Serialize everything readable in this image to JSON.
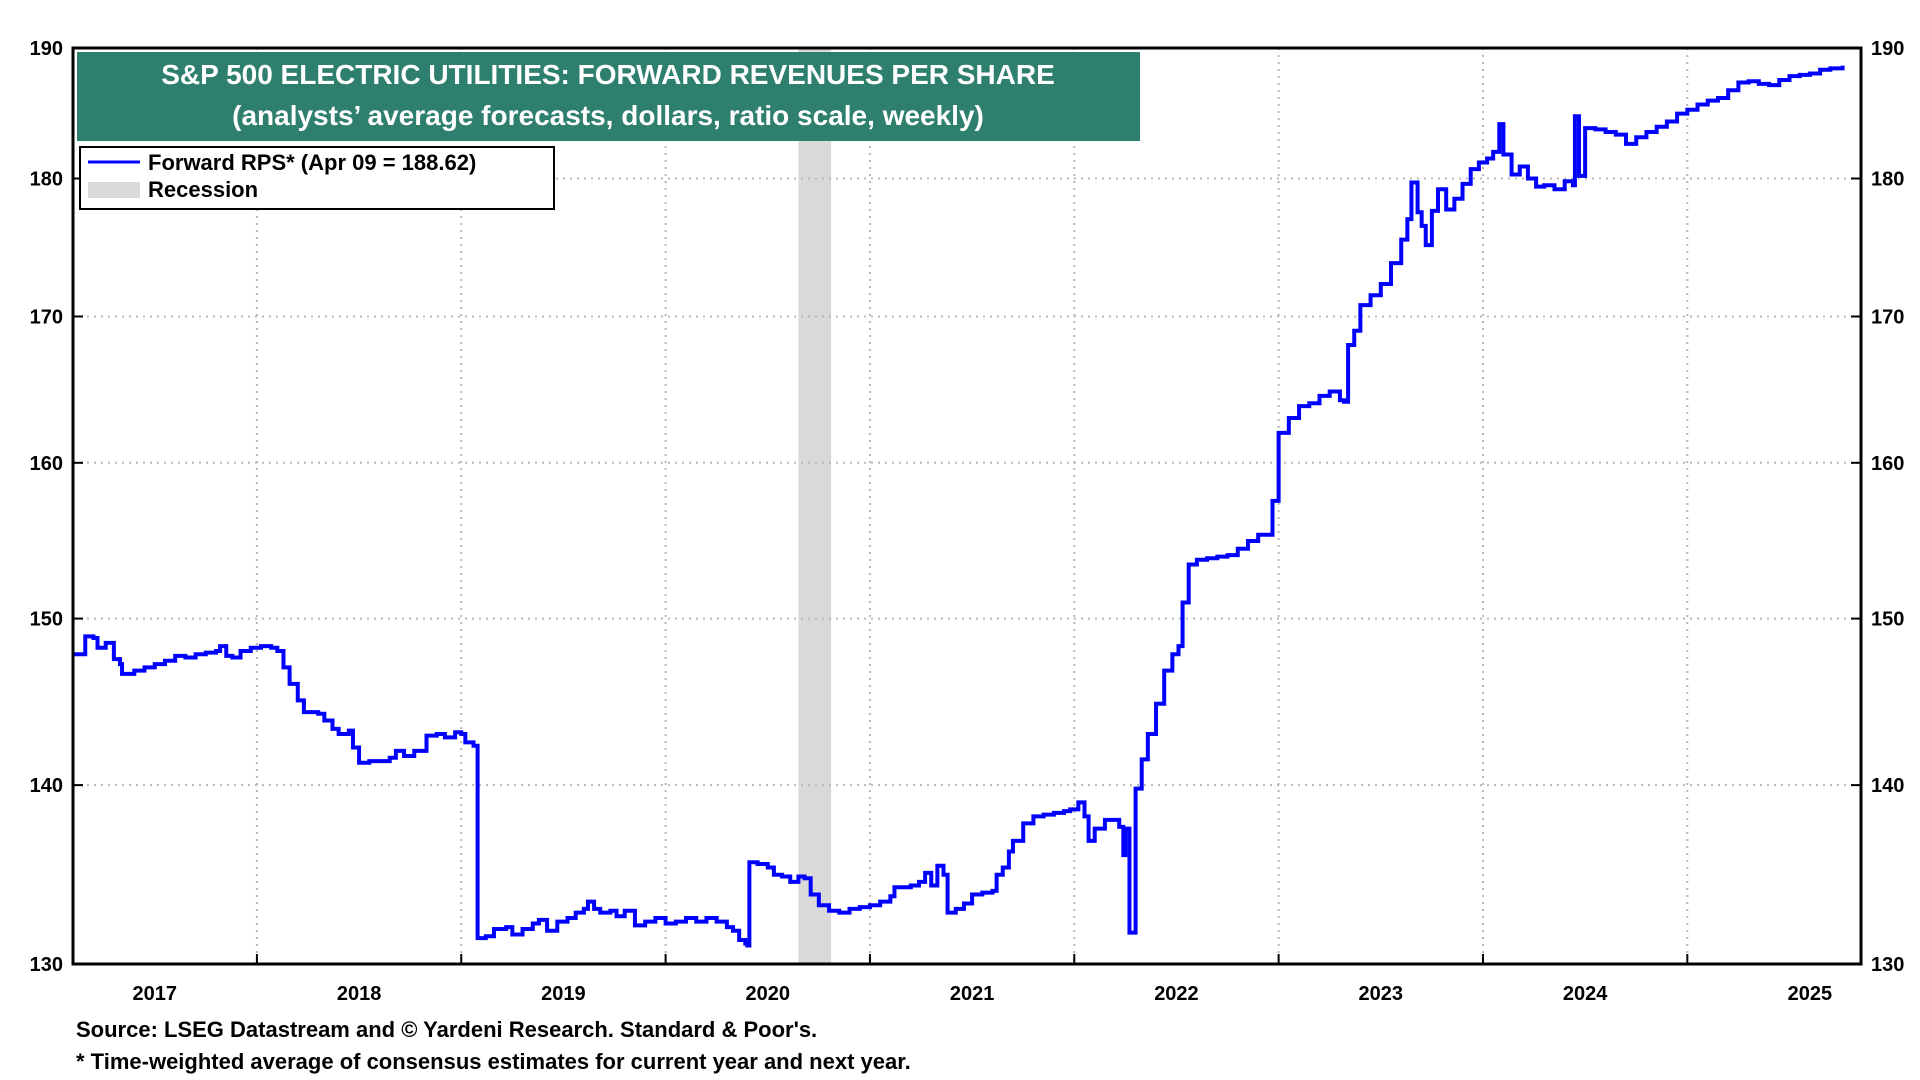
{
  "chart_data": {
    "type": "line",
    "title": "S&P 500 ELECTRIC UTILITIES: FORWARD REVENUES PER SHARE",
    "subtitle": "(analysts’ average forecasts, dollars, ratio scale, weekly)",
    "scale": "log",
    "ylim": [
      130,
      190
    ],
    "yticks": [
      130,
      140,
      150,
      160,
      170,
      180,
      190
    ],
    "x_range": [
      2016.6,
      2025.35
    ],
    "x_gridlines": [
      2017.5,
      2018.5,
      2019.5,
      2020.5,
      2021.5,
      2022.5,
      2023.5,
      2024.5
    ],
    "x_tick_labels": [
      {
        "label": "2017",
        "x": 2017
      },
      {
        "label": "2018",
        "x": 2018
      },
      {
        "label": "2019",
        "x": 2019
      },
      {
        "label": "2020",
        "x": 2020
      },
      {
        "label": "2021",
        "x": 2021
      },
      {
        "label": "2022",
        "x": 2022
      },
      {
        "label": "2023",
        "x": 2023
      },
      {
        "label": "2024",
        "x": 2024
      },
      {
        "label": "2025",
        "x": 2025.1
      }
    ],
    "legend": {
      "placement": "top-left",
      "entries": [
        {
          "label": "Forward RPS* (Apr 09 = 188.62)",
          "kind": "line",
          "color": "#0000ff"
        },
        {
          "label": "Recession",
          "kind": "area",
          "color": "#d9d9d9"
        }
      ]
    },
    "recessions": [
      {
        "start": 2020.15,
        "end": 2020.31
      }
    ],
    "series": [
      {
        "name": "Forward RPS",
        "color": "#0000ff",
        "points": [
          [
            2016.6,
            147.8
          ],
          [
            2016.65,
            147.8
          ],
          [
            2016.66,
            148.9
          ],
          [
            2016.7,
            148.8
          ],
          [
            2016.72,
            148.2
          ],
          [
            2016.76,
            148.5
          ],
          [
            2016.8,
            147.5
          ],
          [
            2016.83,
            147.2
          ],
          [
            2016.84,
            146.6
          ],
          [
            2016.9,
            146.8
          ],
          [
            2016.95,
            147.0
          ],
          [
            2017.0,
            147.2
          ],
          [
            2017.05,
            147.4
          ],
          [
            2017.1,
            147.7
          ],
          [
            2017.15,
            147.6
          ],
          [
            2017.2,
            147.8
          ],
          [
            2017.25,
            147.9
          ],
          [
            2017.3,
            148.0
          ],
          [
            2017.32,
            148.3
          ],
          [
            2017.35,
            147.7
          ],
          [
            2017.38,
            147.6
          ],
          [
            2017.42,
            148.0
          ],
          [
            2017.47,
            148.2
          ],
          [
            2017.52,
            148.3
          ],
          [
            2017.57,
            148.2
          ],
          [
            2017.6,
            148.0
          ],
          [
            2017.63,
            147.0
          ],
          [
            2017.66,
            146.0
          ],
          [
            2017.7,
            145.0
          ],
          [
            2017.73,
            144.3
          ],
          [
            2017.8,
            144.2
          ],
          [
            2017.83,
            143.8
          ],
          [
            2017.87,
            143.3
          ],
          [
            2017.9,
            143.0
          ],
          [
            2017.95,
            143.2
          ],
          [
            2017.97,
            142.2
          ],
          [
            2018.0,
            141.3
          ],
          [
            2018.05,
            141.4
          ],
          [
            2018.1,
            141.4
          ],
          [
            2018.15,
            141.6
          ],
          [
            2018.18,
            142.0
          ],
          [
            2018.22,
            141.7
          ],
          [
            2018.27,
            142.0
          ],
          [
            2018.3,
            142.0
          ],
          [
            2018.33,
            142.9
          ],
          [
            2018.38,
            143.0
          ],
          [
            2018.42,
            142.8
          ],
          [
            2018.47,
            143.1
          ],
          [
            2018.5,
            143.0
          ],
          [
            2018.52,
            142.5
          ],
          [
            2018.56,
            142.3
          ],
          [
            2018.58,
            131.4
          ],
          [
            2018.62,
            131.5
          ],
          [
            2018.66,
            131.9
          ],
          [
            2018.72,
            132.0
          ],
          [
            2018.75,
            131.6
          ],
          [
            2018.8,
            131.9
          ],
          [
            2018.85,
            132.2
          ],
          [
            2018.88,
            132.4
          ],
          [
            2018.92,
            131.8
          ],
          [
            2018.97,
            132.3
          ],
          [
            2019.02,
            132.5
          ],
          [
            2019.06,
            132.8
          ],
          [
            2019.1,
            133.0
          ],
          [
            2019.12,
            133.4
          ],
          [
            2019.15,
            133.0
          ],
          [
            2019.18,
            132.8
          ],
          [
            2019.23,
            132.9
          ],
          [
            2019.26,
            132.6
          ],
          [
            2019.3,
            132.9
          ],
          [
            2019.35,
            132.1
          ],
          [
            2019.4,
            132.3
          ],
          [
            2019.45,
            132.5
          ],
          [
            2019.5,
            132.2
          ],
          [
            2019.55,
            132.3
          ],
          [
            2019.6,
            132.5
          ],
          [
            2019.65,
            132.3
          ],
          [
            2019.7,
            132.5
          ],
          [
            2019.75,
            132.3
          ],
          [
            2019.8,
            132.0
          ],
          [
            2019.83,
            131.8
          ],
          [
            2019.86,
            131.3
          ],
          [
            2019.89,
            131.1
          ],
          [
            2019.9,
            131.0
          ],
          [
            2019.91,
            135.6
          ],
          [
            2019.95,
            135.5
          ],
          [
            2020.0,
            135.3
          ],
          [
            2020.03,
            134.9
          ],
          [
            2020.07,
            134.8
          ],
          [
            2020.11,
            134.5
          ],
          [
            2020.15,
            134.8
          ],
          [
            2020.18,
            134.7
          ],
          [
            2020.21,
            133.8
          ],
          [
            2020.25,
            133.2
          ],
          [
            2020.3,
            132.9
          ],
          [
            2020.35,
            132.8
          ],
          [
            2020.4,
            133.0
          ],
          [
            2020.45,
            133.1
          ],
          [
            2020.5,
            133.2
          ],
          [
            2020.55,
            133.4
          ],
          [
            2020.6,
            133.7
          ],
          [
            2020.62,
            134.2
          ],
          [
            2020.7,
            134.3
          ],
          [
            2020.74,
            134.5
          ],
          [
            2020.77,
            135.0
          ],
          [
            2020.8,
            134.3
          ],
          [
            2020.83,
            135.4
          ],
          [
            2020.86,
            134.9
          ],
          [
            2020.88,
            132.8
          ],
          [
            2020.92,
            133.0
          ],
          [
            2020.96,
            133.3
          ],
          [
            2021.0,
            133.8
          ],
          [
            2021.05,
            133.9
          ],
          [
            2021.1,
            134.0
          ],
          [
            2021.12,
            134.9
          ],
          [
            2021.15,
            135.3
          ],
          [
            2021.18,
            136.2
          ],
          [
            2021.2,
            136.8
          ],
          [
            2021.25,
            137.8
          ],
          [
            2021.3,
            138.2
          ],
          [
            2021.35,
            138.3
          ],
          [
            2021.4,
            138.4
          ],
          [
            2021.45,
            138.5
          ],
          [
            2021.48,
            138.6
          ],
          [
            2021.52,
            139.0
          ],
          [
            2021.55,
            138.2
          ],
          [
            2021.57,
            136.8
          ],
          [
            2021.6,
            137.5
          ],
          [
            2021.65,
            138.0
          ],
          [
            2021.7,
            138.0
          ],
          [
            2021.72,
            137.6
          ],
          [
            2021.74,
            136.0
          ],
          [
            2021.75,
            137.5
          ],
          [
            2021.77,
            131.7
          ],
          [
            2021.8,
            139.8
          ],
          [
            2021.83,
            141.5
          ],
          [
            2021.86,
            143.0
          ],
          [
            2021.9,
            144.8
          ],
          [
            2021.94,
            146.8
          ],
          [
            2021.98,
            147.8
          ],
          [
            2022.01,
            148.3
          ],
          [
            2022.03,
            151.0
          ],
          [
            2022.06,
            153.4
          ],
          [
            2022.1,
            153.7
          ],
          [
            2022.15,
            153.8
          ],
          [
            2022.2,
            153.9
          ],
          [
            2022.25,
            154.0
          ],
          [
            2022.3,
            154.4
          ],
          [
            2022.35,
            154.9
          ],
          [
            2022.4,
            155.3
          ],
          [
            2022.45,
            155.3
          ],
          [
            2022.47,
            157.5
          ],
          [
            2022.5,
            162.0
          ],
          [
            2022.55,
            163.0
          ],
          [
            2022.6,
            163.8
          ],
          [
            2022.65,
            164.0
          ],
          [
            2022.7,
            164.5
          ],
          [
            2022.75,
            164.8
          ],
          [
            2022.8,
            164.2
          ],
          [
            2022.82,
            164.1
          ],
          [
            2022.84,
            168.0
          ],
          [
            2022.87,
            169.0
          ],
          [
            2022.9,
            170.8
          ],
          [
            2022.95,
            171.5
          ],
          [
            2023.0,
            172.3
          ],
          [
            2023.05,
            173.8
          ],
          [
            2023.1,
            175.5
          ],
          [
            2023.13,
            177.0
          ],
          [
            2023.15,
            179.7
          ],
          [
            2023.18,
            177.5
          ],
          [
            2023.2,
            176.5
          ],
          [
            2023.22,
            175.1
          ],
          [
            2023.25,
            177.6
          ],
          [
            2023.28,
            179.2
          ],
          [
            2023.32,
            177.7
          ],
          [
            2023.36,
            178.5
          ],
          [
            2023.4,
            179.6
          ],
          [
            2023.44,
            180.7
          ],
          [
            2023.48,
            181.2
          ],
          [
            2023.52,
            181.5
          ],
          [
            2023.55,
            182.0
          ],
          [
            2023.58,
            184.1
          ],
          [
            2023.6,
            181.8
          ],
          [
            2023.64,
            180.3
          ],
          [
            2023.68,
            180.9
          ],
          [
            2023.72,
            180.0
          ],
          [
            2023.76,
            179.4
          ],
          [
            2023.8,
            179.5
          ],
          [
            2023.85,
            179.2
          ],
          [
            2023.9,
            179.8
          ],
          [
            2023.94,
            179.5
          ],
          [
            2023.95,
            184.7
          ],
          [
            2023.97,
            180.2
          ],
          [
            2024.0,
            183.8
          ],
          [
            2024.05,
            183.7
          ],
          [
            2024.1,
            183.5
          ],
          [
            2024.15,
            183.3
          ],
          [
            2024.2,
            182.6
          ],
          [
            2024.25,
            183.1
          ],
          [
            2024.3,
            183.5
          ],
          [
            2024.35,
            183.9
          ],
          [
            2024.4,
            184.3
          ],
          [
            2024.45,
            184.9
          ],
          [
            2024.5,
            185.2
          ],
          [
            2024.55,
            185.6
          ],
          [
            2024.6,
            185.9
          ],
          [
            2024.65,
            186.1
          ],
          [
            2024.7,
            186.7
          ],
          [
            2024.75,
            187.3
          ],
          [
            2024.8,
            187.4
          ],
          [
            2024.85,
            187.2
          ],
          [
            2024.9,
            187.1
          ],
          [
            2024.95,
            187.5
          ],
          [
            2025.0,
            187.8
          ],
          [
            2025.05,
            187.9
          ],
          [
            2025.1,
            188.0
          ],
          [
            2025.15,
            188.3
          ],
          [
            2025.2,
            188.4
          ],
          [
            2025.26,
            188.62
          ]
        ]
      }
    ]
  },
  "footer": {
    "source": "Source: LSEG Datastream and © Yardeni Research. Standard & Poor's.",
    "note": "* Time-weighted average of consensus estimates for current year and next year."
  },
  "colors": {
    "line": "#0000ff",
    "title_band": "#2e7f6e",
    "recession": "#d9d9d9",
    "grid": "#b8b8b8"
  }
}
